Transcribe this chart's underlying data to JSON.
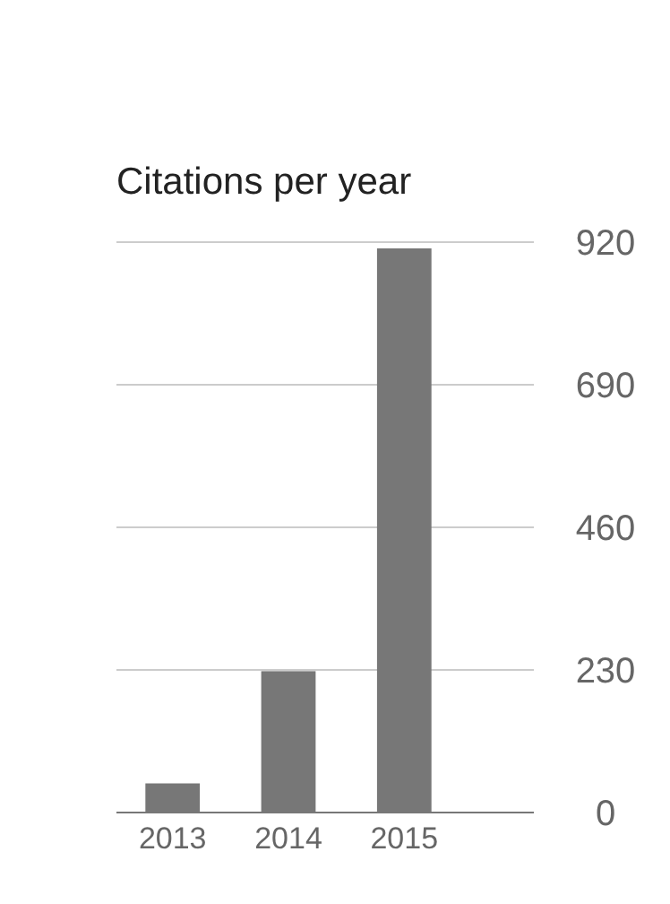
{
  "chart_data": {
    "type": "bar",
    "title": "Citations per year",
    "categories": [
      "2013",
      "2014",
      "2015"
    ],
    "values": [
      47,
      228,
      910
    ],
    "color": "#777777",
    "ylim": [
      0,
      920
    ],
    "yticks": [
      0,
      230,
      460,
      690,
      920
    ],
    "grid": "y"
  }
}
